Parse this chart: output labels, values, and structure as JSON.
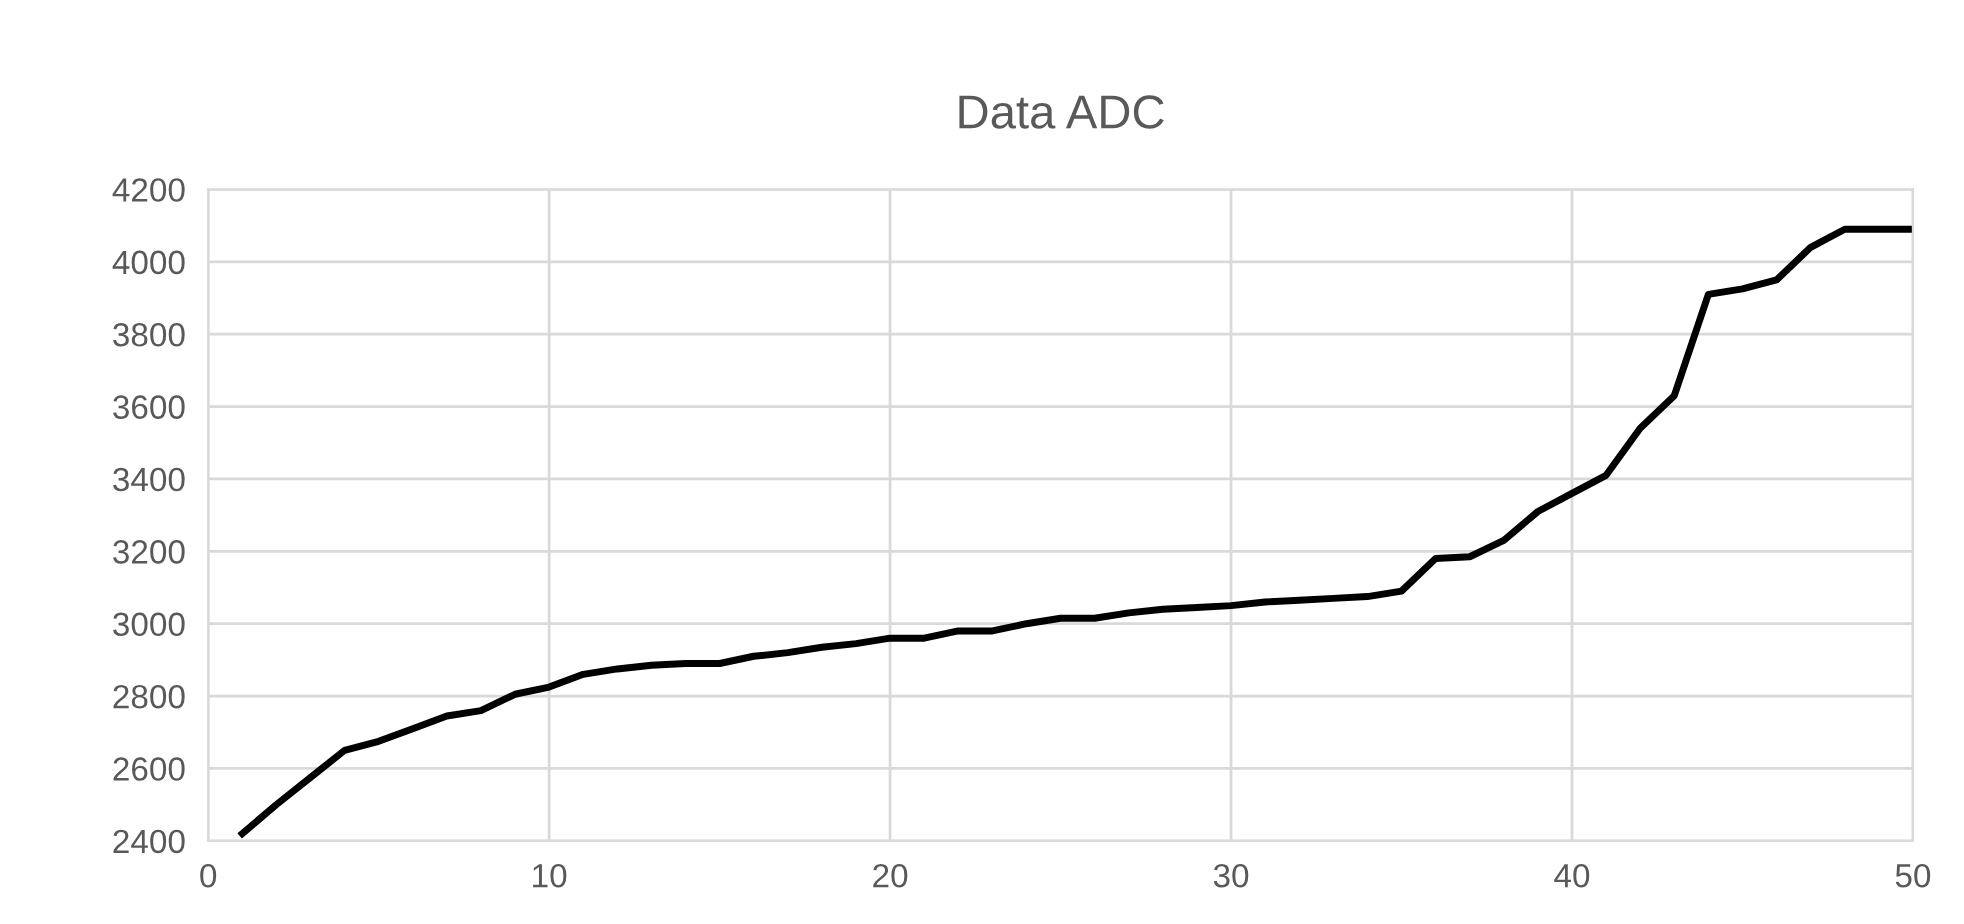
{
  "chart_data": {
    "type": "line",
    "title": "Data ADC",
    "x": [
      1,
      2,
      3,
      4,
      5,
      6,
      7,
      8,
      9,
      10,
      11,
      12,
      13,
      14,
      15,
      16,
      17,
      18,
      19,
      20,
      21,
      22,
      23,
      24,
      25,
      26,
      27,
      28,
      29,
      30,
      31,
      32,
      33,
      34,
      35,
      36,
      37,
      38,
      39,
      40,
      41,
      42,
      43,
      44,
      45,
      46,
      47,
      48,
      49,
      50
    ],
    "series": [
      {
        "color": "#000000",
        "values": [
          2420,
          2500,
          2575,
          2650,
          2675,
          2710,
          2745,
          2760,
          2805,
          2825,
          2860,
          2875,
          2885,
          2890,
          2890,
          2910,
          2920,
          2935,
          2945,
          2960,
          2960,
          2980,
          2980,
          3000,
          3015,
          3015,
          3030,
          3040,
          3045,
          3050,
          3060,
          3065,
          3070,
          3075,
          3090,
          3180,
          3185,
          3230,
          3310,
          3360,
          3410,
          3540,
          3630,
          3910,
          3925,
          3950,
          4040,
          4090,
          4090,
          4090
        ]
      }
    ],
    "xlim": [
      0,
      50
    ],
    "xticks": [
      0,
      10,
      20,
      30,
      40,
      50
    ],
    "ylim": [
      2400,
      4200
    ],
    "yticks": [
      2400,
      2600,
      2800,
      3000,
      3200,
      3400,
      3600,
      3800,
      4000,
      4200
    ],
    "grid": true,
    "legend": false,
    "marker": "none",
    "line_style": "solid"
  }
}
